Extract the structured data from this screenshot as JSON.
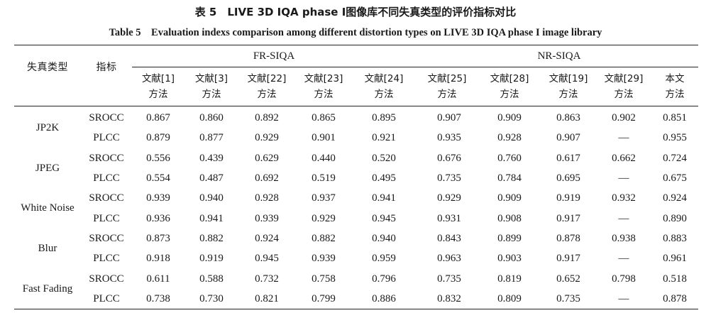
{
  "caption": {
    "zh": "表 5　LIVE 3D IQA phase I图像库不同失真类型的评价指标对比",
    "en": "Table 5　Evaluation indexs comparison among different distortion types on LIVE 3D IQA phase I image library"
  },
  "header": {
    "distortion_type": "失真类型",
    "metric": "指标",
    "fr_group": "FR-SIQA",
    "nr_group": "NR-SIQA",
    "columns": [
      {
        "ref": "文献[1]",
        "sub": "方法"
      },
      {
        "ref": "文献[3]",
        "sub": "方法"
      },
      {
        "ref": "文献[22]",
        "sub": "方法"
      },
      {
        "ref": "文献[23]",
        "sub": "方法"
      },
      {
        "ref": "文献[24]",
        "sub": "方法"
      },
      {
        "ref": "文献[25]",
        "sub": "方法"
      },
      {
        "ref": "文献[28]",
        "sub": "方法"
      },
      {
        "ref": "文献[19]",
        "sub": "方法"
      },
      {
        "ref": "文献[29]",
        "sub": "方法"
      },
      {
        "ref": "本文",
        "sub": "方法"
      }
    ]
  },
  "rows": [
    {
      "type": "JP2K",
      "metrics": [
        {
          "name": "SROCC",
          "values": [
            "0.867",
            "0.860",
            "0.892",
            "0.865",
            "0.895",
            "0.907",
            "0.909",
            "0.863",
            "0.902",
            "0.851"
          ]
        },
        {
          "name": "PLCC",
          "values": [
            "0.879",
            "0.877",
            "0.929",
            "0.901",
            "0.921",
            "0.935",
            "0.928",
            "0.907",
            "—",
            "0.955"
          ]
        }
      ]
    },
    {
      "type": "JPEG",
      "metrics": [
        {
          "name": "SROCC",
          "values": [
            "0.556",
            "0.439",
            "0.629",
            "0.440",
            "0.520",
            "0.676",
            "0.760",
            "0.617",
            "0.662",
            "0.724"
          ]
        },
        {
          "name": "PLCC",
          "values": [
            "0.554",
            "0.487",
            "0.692",
            "0.519",
            "0.495",
            "0.735",
            "0.784",
            "0.695",
            "—",
            "0.675"
          ]
        }
      ]
    },
    {
      "type": "White Noise",
      "metrics": [
        {
          "name": "SROCC",
          "values": [
            "0.939",
            "0.940",
            "0.928",
            "0.937",
            "0.941",
            "0.929",
            "0.909",
            "0.919",
            "0.932",
            "0.924"
          ]
        },
        {
          "name": "PLCC",
          "values": [
            "0.936",
            "0.941",
            "0.939",
            "0.929",
            "0.945",
            "0.931",
            "0.908",
            "0.917",
            "—",
            "0.890"
          ]
        }
      ]
    },
    {
      "type": "Blur",
      "metrics": [
        {
          "name": "SROCC",
          "values": [
            "0.873",
            "0.882",
            "0.924",
            "0.882",
            "0.940",
            "0.843",
            "0.899",
            "0.878",
            "0.938",
            "0.883"
          ]
        },
        {
          "name": "PLCC",
          "values": [
            "0.918",
            "0.919",
            "0.945",
            "0.939",
            "0.959",
            "0.963",
            "0.903",
            "0.917",
            "—",
            "0.961"
          ]
        }
      ]
    },
    {
      "type": "Fast Fading",
      "metrics": [
        {
          "name": "SROCC",
          "values": [
            "0.611",
            "0.588",
            "0.732",
            "0.758",
            "0.796",
            "0.735",
            "0.819",
            "0.652",
            "0.798",
            "0.518"
          ]
        },
        {
          "name": "PLCC",
          "values": [
            "0.738",
            "0.730",
            "0.821",
            "0.799",
            "0.886",
            "0.832",
            "0.809",
            "0.735",
            "—",
            "0.878"
          ]
        }
      ]
    }
  ]
}
